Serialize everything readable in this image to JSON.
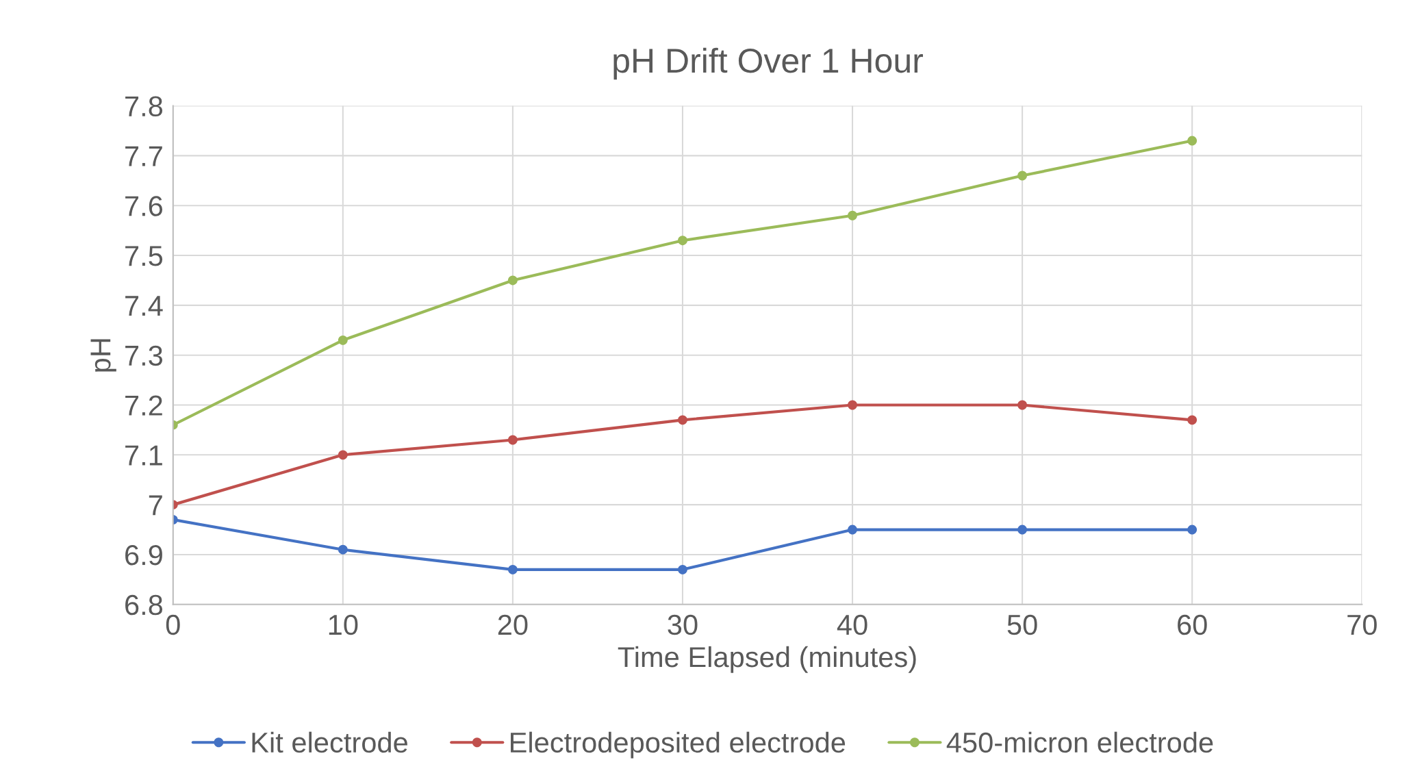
{
  "chart_data": {
    "type": "line",
    "title": "pH Drift Over 1 Hour",
    "xlabel": "Time Elapsed (minutes)",
    "ylabel": "pH",
    "x": [
      0,
      10,
      20,
      30,
      40,
      50,
      60
    ],
    "series": [
      {
        "name": "Kit electrode",
        "color": "#4472c4",
        "values": [
          6.97,
          6.91,
          6.87,
          6.87,
          6.95,
          6.95,
          6.95
        ]
      },
      {
        "name": "Electrodeposited electrode",
        "color": "#c0504d",
        "values": [
          7.0,
          7.1,
          7.13,
          7.17,
          7.2,
          7.2,
          7.17
        ]
      },
      {
        "name": "450-micron electrode",
        "color": "#9bbb59",
        "values": [
          7.16,
          7.33,
          7.45,
          7.53,
          7.58,
          7.66,
          7.73
        ]
      }
    ],
    "xlim": [
      0,
      70
    ],
    "xticks": [
      0,
      10,
      20,
      30,
      40,
      50,
      60,
      70
    ],
    "ylim": [
      6.8,
      7.8
    ],
    "yticks": [
      6.8,
      6.9,
      7,
      7.1,
      7.2,
      7.3,
      7.4,
      7.5,
      7.6,
      7.7,
      7.8
    ],
    "grid": true,
    "legend": "bottom",
    "marker": "circle",
    "line_style": "solid"
  }
}
